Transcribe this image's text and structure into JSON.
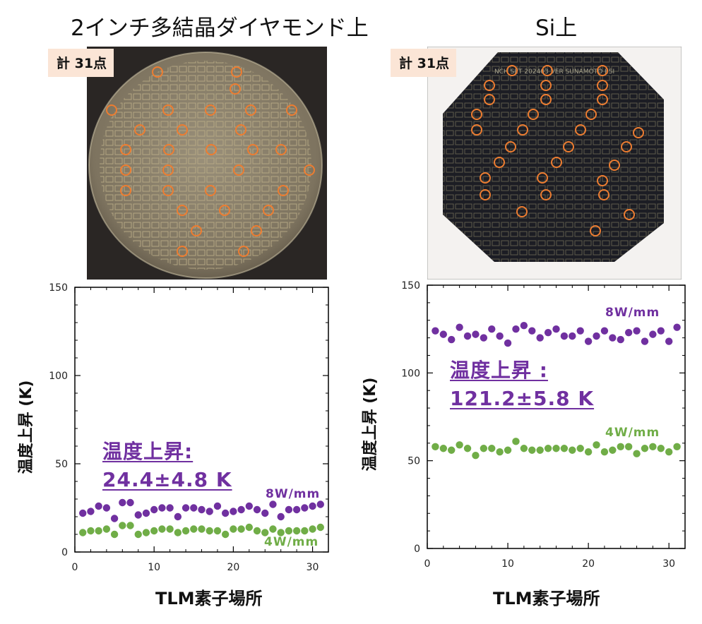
{
  "left": {
    "title": "2インチ多結晶ダイヤモンド上",
    "badge": "計 31点",
    "annotation_line1": "温度上昇:",
    "annotation_line2": "24.4±4.8 K"
  },
  "right": {
    "title": "Si上",
    "badge": "計 31点",
    "annotation_line1": "温度上昇 :",
    "annotation_line2": "121.2±5.8 K",
    "wafer_text": "NCH SET 202403  VER SUNAMOTO ESI"
  },
  "colors": {
    "series_8w": "#7030a0",
    "series_4w": "#70ad47",
    "marker_circle": "#ed7d31",
    "badge_bg": "#fbe5d6"
  },
  "chart_data": [
    {
      "type": "scatter",
      "xlabel": "TLM素子場所",
      "ylabel": "温度上昇 (K)",
      "xlim": [
        0,
        32
      ],
      "ylim": [
        0,
        150
      ],
      "xticks": [
        0,
        10,
        20,
        30
      ],
      "yticks": [
        0,
        50,
        100,
        150
      ],
      "grid": false,
      "x": [
        1,
        2,
        3,
        4,
        5,
        6,
        7,
        8,
        9,
        10,
        11,
        12,
        13,
        14,
        15,
        16,
        17,
        18,
        19,
        20,
        21,
        22,
        23,
        24,
        25,
        26,
        27,
        28,
        29,
        30,
        31
      ],
      "series": [
        {
          "name": "8W/mm",
          "values": [
            22,
            23,
            26,
            25,
            19,
            28,
            28,
            21,
            22,
            24,
            25,
            25,
            20,
            25,
            25,
            24,
            23,
            26,
            22,
            23,
            24,
            26,
            24,
            22,
            27,
            20,
            24,
            24,
            25,
            26,
            27
          ]
        },
        {
          "name": "4W/mm",
          "values": [
            11,
            12,
            12,
            13,
            10,
            15,
            15,
            10,
            11,
            12,
            13,
            13,
            11,
            12,
            13,
            13,
            12,
            12,
            10,
            13,
            13,
            14,
            12,
            11,
            13,
            11,
            12,
            12,
            12,
            13,
            14
          ]
        }
      ]
    },
    {
      "type": "scatter",
      "xlabel": "TLM素子場所",
      "ylabel": "温度上昇 (K)",
      "xlim": [
        0,
        32
      ],
      "ylim": [
        0,
        150
      ],
      "xticks": [
        0,
        10,
        20,
        30
      ],
      "yticks": [
        0,
        50,
        100,
        150
      ],
      "grid": false,
      "x": [
        1,
        2,
        3,
        4,
        5,
        6,
        7,
        8,
        9,
        10,
        11,
        12,
        13,
        14,
        15,
        16,
        17,
        18,
        19,
        20,
        21,
        22,
        23,
        24,
        25,
        26,
        27,
        28,
        29,
        30,
        31
      ],
      "series": [
        {
          "name": "8W/mm",
          "values": [
            124,
            122,
            119,
            126,
            121,
            122,
            120,
            125,
            121,
            117,
            125,
            127,
            124,
            120,
            123,
            125,
            121,
            121,
            124,
            118,
            121,
            124,
            120,
            119,
            123,
            124,
            118,
            122,
            124,
            118,
            126
          ]
        },
        {
          "name": "4W/mm",
          "values": [
            58,
            57,
            56,
            59,
            57,
            53,
            57,
            57,
            55,
            56,
            61,
            57,
            56,
            56,
            57,
            57,
            57,
            56,
            57,
            55,
            59,
            55,
            56,
            58,
            58,
            54,
            57,
            58,
            57,
            55,
            58
          ]
        }
      ]
    }
  ]
}
